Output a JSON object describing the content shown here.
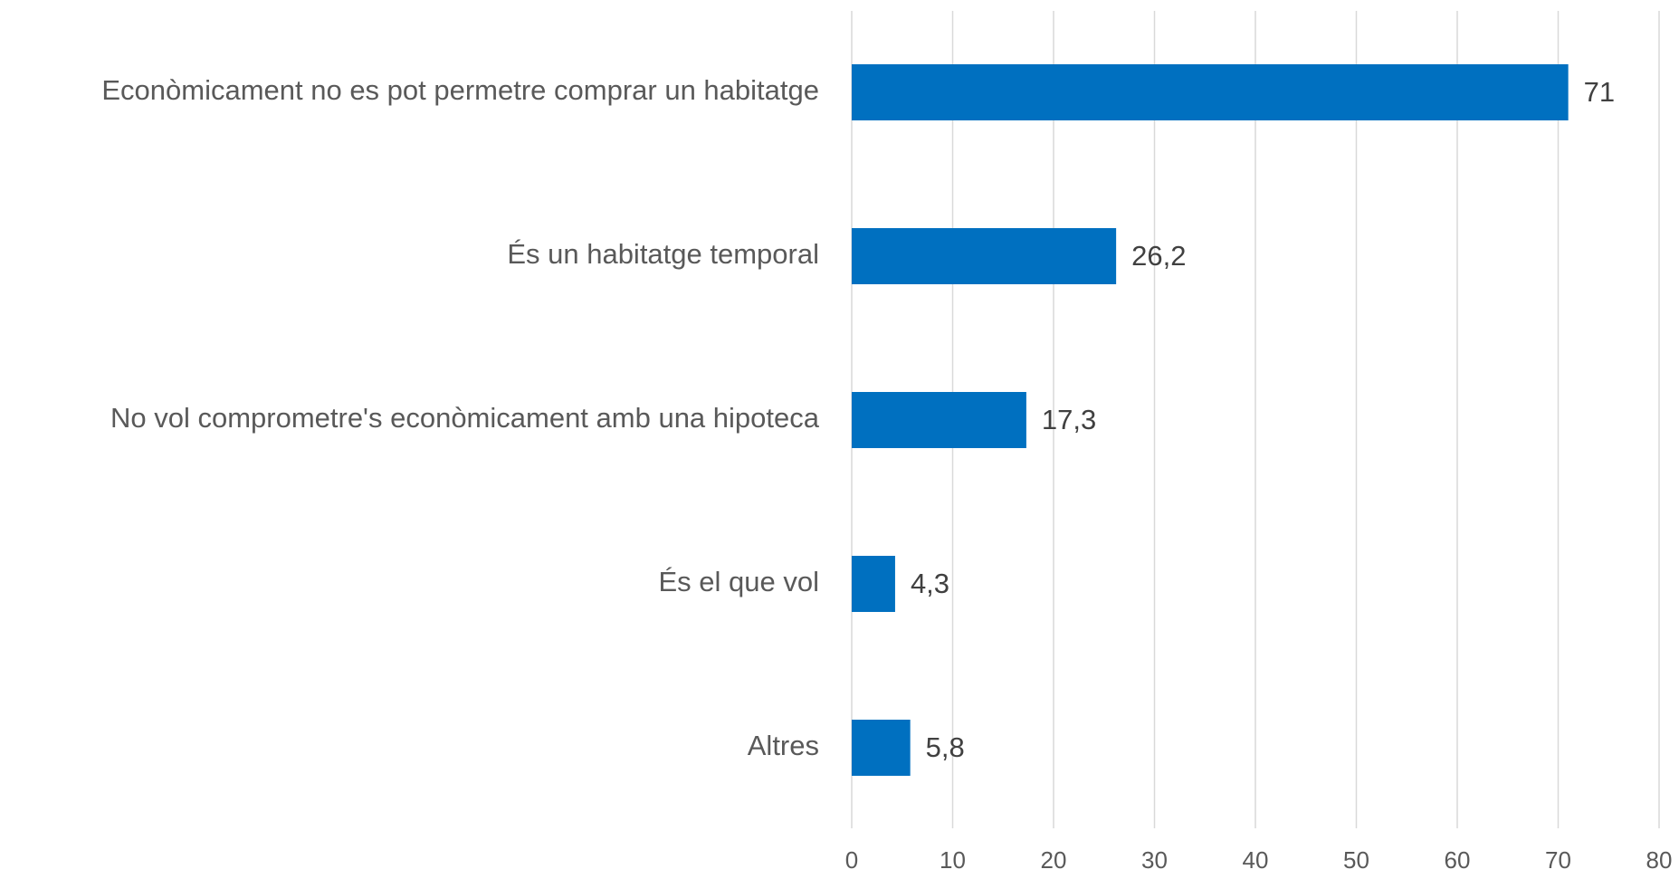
{
  "chart_data": {
    "type": "bar",
    "orientation": "horizontal",
    "categories": [
      "Econòmicament no es pot permetre comprar un habitatge",
      "És un habitatge temporal",
      "No vol comprometre's econòmicament amb una hipoteca",
      "És el que vol",
      "Altres"
    ],
    "values": [
      71,
      26.2,
      17.3,
      4.3,
      5.8
    ],
    "value_labels": [
      "71",
      "26,2",
      "17,3",
      "4,3",
      "5,8"
    ],
    "color": "#0070c0",
    "xlim": [
      0,
      80
    ],
    "xticks": [
      0,
      10,
      20,
      30,
      40,
      50,
      60,
      70,
      80
    ],
    "grid": true
  }
}
